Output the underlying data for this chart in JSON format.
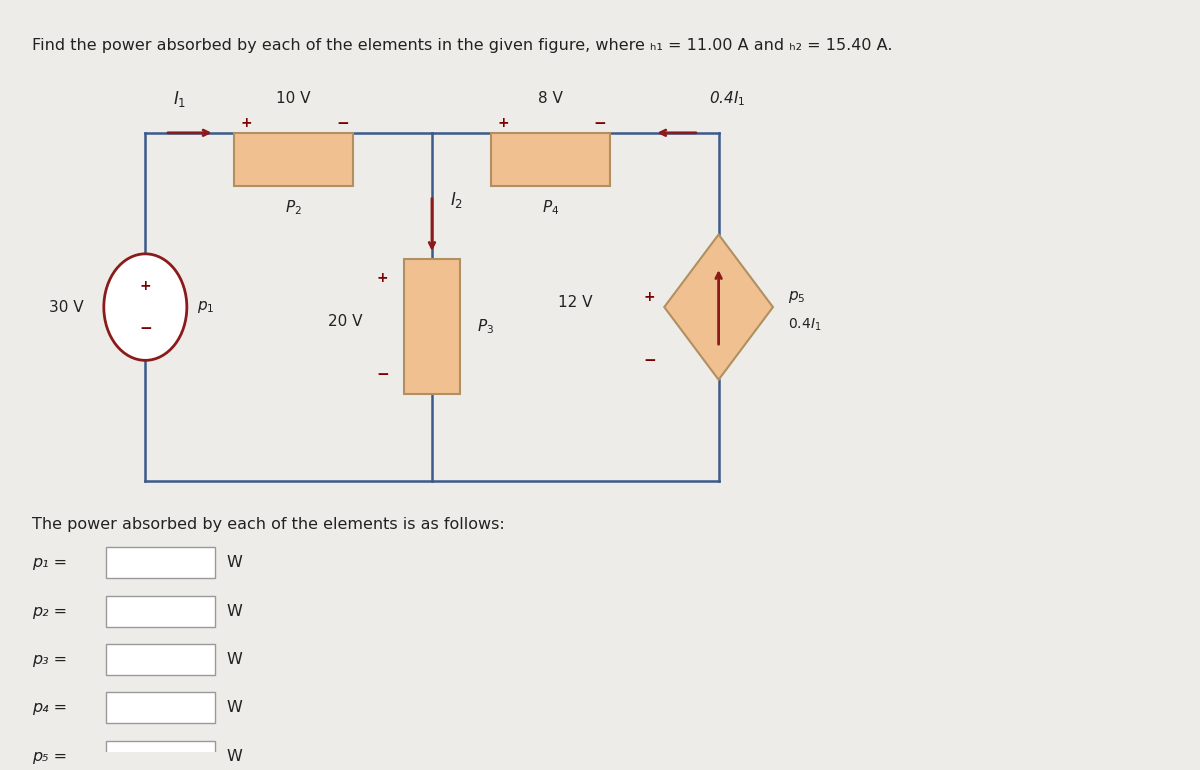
{
  "bg_color": "#eeece8",
  "wire_color": "#3a5a8a",
  "element_fill": "#f0c090",
  "element_edge": "#b09060",
  "src_color": "#8b1a1a",
  "txt_color": "#222222",
  "pm_color": "#7a0000",
  "title": "Find the power absorbed by each of the elements in the given figure, where ",
  "i1_val": "11.00",
  "i2_val": "15.40",
  "answer_label": "The power absorbed by each of the elements is as follows:",
  "p_labels": [
    "p₁ =",
    "p₂ =",
    "p₃ =",
    "p₄ =",
    "p₅ ="
  ]
}
